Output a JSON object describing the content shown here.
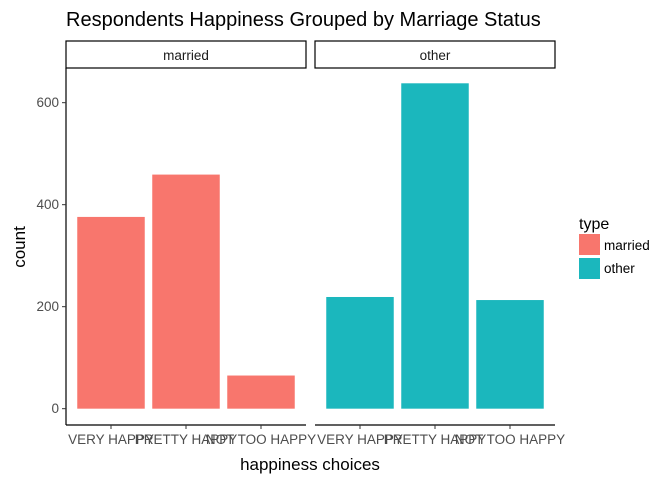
{
  "chart_data": {
    "type": "bar",
    "title": "Respondents Happiness Grouped by Marriage Status",
    "xlabel": "happiness choices",
    "ylabel": "count",
    "categories": [
      "VERY HAPPY",
      "PRETTY HAPPY",
      "NOT TOO HAPPY"
    ],
    "yticks": [
      0,
      200,
      400,
      600
    ],
    "ylim": [
      -32,
      668
    ],
    "grid": false,
    "facets": [
      {
        "label": "married",
        "series": "married",
        "values": [
          376,
          459,
          65
        ]
      },
      {
        "label": "other",
        "series": "other",
        "values": [
          219,
          638,
          213
        ]
      }
    ],
    "legend": {
      "title": "type",
      "position": "right",
      "entries": [
        {
          "name": "married",
          "color": "#f8766d"
        },
        {
          "name": "other",
          "color": "#1bb7bd"
        }
      ]
    },
    "colors": {
      "married": "#f8766d",
      "other": "#1bb7bd",
      "axis": "#000000",
      "tick_text": "#4d4d4d"
    }
  }
}
